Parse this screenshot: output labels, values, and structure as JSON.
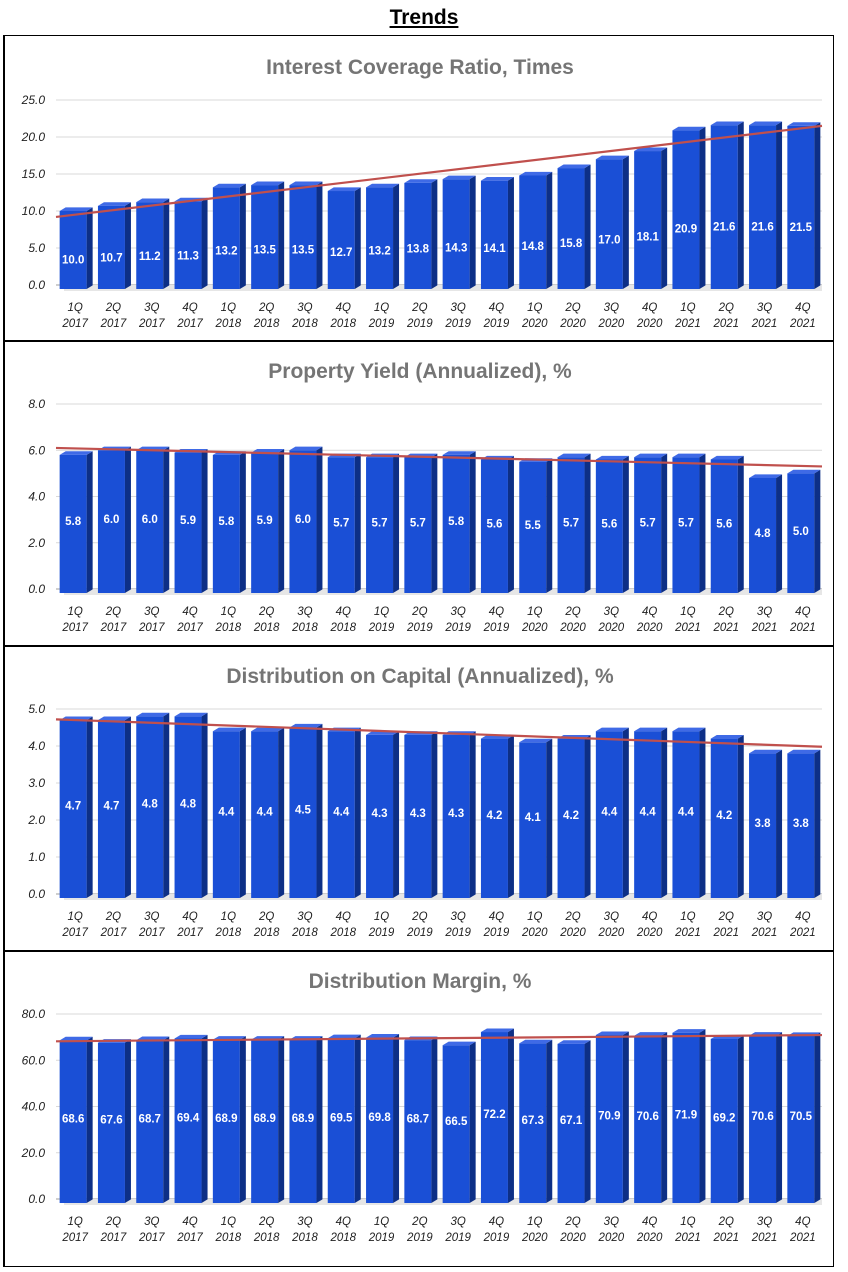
{
  "header": {
    "title": "Trends"
  },
  "colors": {
    "bar_front": "#1a4fd6",
    "bar_side": "#0d2f86",
    "bar_top": "#3f6ae6",
    "trend": "#c0504d",
    "grid": "#d9d9d9"
  },
  "chart_data": [
    {
      "type": "bar",
      "title": "Interest Coverage Ratio, Times",
      "ylim": [
        0,
        25
      ],
      "yticks": [
        "0.0",
        "5.0",
        "10.0",
        "15.0",
        "20.0",
        "25.0"
      ],
      "categories": [
        "1Q 2017",
        "2Q 2017",
        "3Q 2017",
        "4Q 2017",
        "1Q 2018",
        "2Q 2018",
        "3Q 2018",
        "4Q 2018",
        "1Q 2019",
        "2Q 2019",
        "3Q 2019",
        "4Q 2019",
        "1Q 2020",
        "2Q 2020",
        "3Q 2020",
        "4Q 2020",
        "1Q 2021",
        "2Q 2021",
        "3Q 2021",
        "4Q 2021"
      ],
      "values": [
        10.0,
        10.7,
        11.2,
        11.3,
        13.2,
        13.5,
        13.5,
        12.7,
        13.2,
        13.8,
        14.3,
        14.1,
        14.8,
        15.8,
        17.0,
        18.1,
        20.9,
        21.6,
        21.6,
        21.5
      ],
      "labels": [
        "10.0",
        "10.7",
        "11.2",
        "11.3",
        "13.2",
        "13.5",
        "13.5",
        "12.7",
        "13.2",
        "13.8",
        "14.3",
        "14.1",
        "14.8",
        "15.8",
        "17.0",
        "18.1",
        "20.9",
        "21.6",
        "21.6",
        "21.5"
      ],
      "trendline": [
        9.2,
        21.5
      ],
      "xlabel": "",
      "ylabel": ""
    },
    {
      "type": "bar",
      "title": "Property Yield (Annualized), %",
      "ylim": [
        0,
        8
      ],
      "yticks": [
        "0.0",
        "2.0",
        "4.0",
        "6.0",
        "8.0"
      ],
      "categories": [
        "1Q 2017",
        "2Q 2017",
        "3Q 2017",
        "4Q 2017",
        "1Q 2018",
        "2Q 2018",
        "3Q 2018",
        "4Q 2018",
        "1Q 2019",
        "2Q 2019",
        "3Q 2019",
        "4Q 2019",
        "1Q 2020",
        "2Q 2020",
        "3Q 2020",
        "4Q 2020",
        "1Q 2021",
        "2Q 2021",
        "3Q 2021",
        "4Q 2021"
      ],
      "values": [
        5.8,
        6.0,
        6.0,
        5.9,
        5.8,
        5.9,
        6.0,
        5.7,
        5.7,
        5.7,
        5.8,
        5.6,
        5.5,
        5.7,
        5.6,
        5.7,
        5.7,
        5.6,
        4.8,
        5.0
      ],
      "labels": [
        "5.8",
        "6.0",
        "6.0",
        "5.9",
        "5.8",
        "5.9",
        "6.0",
        "5.7",
        "5.7",
        "5.7",
        "5.8",
        "5.6",
        "5.5",
        "5.7",
        "5.6",
        "5.7",
        "5.7",
        "5.6",
        "4.8",
        "5.0"
      ],
      "trendline": [
        6.1,
        5.3
      ],
      "xlabel": "",
      "ylabel": ""
    },
    {
      "type": "bar",
      "title": "Distribution on Capital (Annualized), %",
      "ylim": [
        0,
        5
      ],
      "yticks": [
        "0.0",
        "1.0",
        "2.0",
        "3.0",
        "4.0",
        "5.0"
      ],
      "categories": [
        "1Q 2017",
        "2Q 2017",
        "3Q 2017",
        "4Q 2017",
        "1Q 2018",
        "2Q 2018",
        "3Q 2018",
        "4Q 2018",
        "1Q 2019",
        "2Q 2019",
        "3Q 2019",
        "4Q 2019",
        "1Q 2020",
        "2Q 2020",
        "3Q 2020",
        "4Q 2020",
        "1Q 2021",
        "2Q 2021",
        "3Q 2021",
        "4Q 2021"
      ],
      "values": [
        4.7,
        4.7,
        4.8,
        4.8,
        4.4,
        4.4,
        4.5,
        4.4,
        4.3,
        4.3,
        4.3,
        4.2,
        4.1,
        4.2,
        4.4,
        4.4,
        4.4,
        4.2,
        3.8,
        3.8
      ],
      "labels": [
        "4.7",
        "4.7",
        "4.8",
        "4.8",
        "4.4",
        "4.4",
        "4.5",
        "4.4",
        "4.3",
        "4.3",
        "4.3",
        "4.2",
        "4.1",
        "4.2",
        "4.4",
        "4.4",
        "4.4",
        "4.2",
        "3.8",
        "3.8"
      ],
      "trendline": [
        4.72,
        3.98
      ],
      "xlabel": "",
      "ylabel": ""
    },
    {
      "type": "bar",
      "title": "Distribution Margin, %",
      "ylim": [
        0,
        80
      ],
      "yticks": [
        "0.0",
        "20.0",
        "40.0",
        "60.0",
        "80.0"
      ],
      "categories": [
        "1Q 2017",
        "2Q 2017",
        "3Q 2017",
        "4Q 2017",
        "1Q 2018",
        "2Q 2018",
        "3Q 2018",
        "4Q 2018",
        "1Q 2019",
        "2Q 2019",
        "3Q 2019",
        "4Q 2019",
        "1Q 2020",
        "2Q 2020",
        "3Q 2020",
        "4Q 2020",
        "1Q 2021",
        "2Q 2021",
        "3Q 2021",
        "4Q 2021"
      ],
      "values": [
        68.6,
        67.6,
        68.7,
        69.4,
        68.9,
        68.9,
        68.9,
        69.5,
        69.8,
        68.7,
        66.5,
        72.2,
        67.3,
        67.1,
        70.9,
        70.6,
        71.9,
        69.2,
        70.6,
        70.5
      ],
      "labels": [
        "68.6",
        "67.6",
        "68.7",
        "69.4",
        "68.9",
        "68.9",
        "68.9",
        "69.5",
        "69.8",
        "68.7",
        "66.5",
        "72.2",
        "67.3",
        "67.1",
        "70.9",
        "70.6",
        "71.9",
        "69.2",
        "70.6",
        "70.5"
      ],
      "trendline": [
        68.2,
        70.9
      ],
      "xlabel": "",
      "ylabel": ""
    }
  ]
}
